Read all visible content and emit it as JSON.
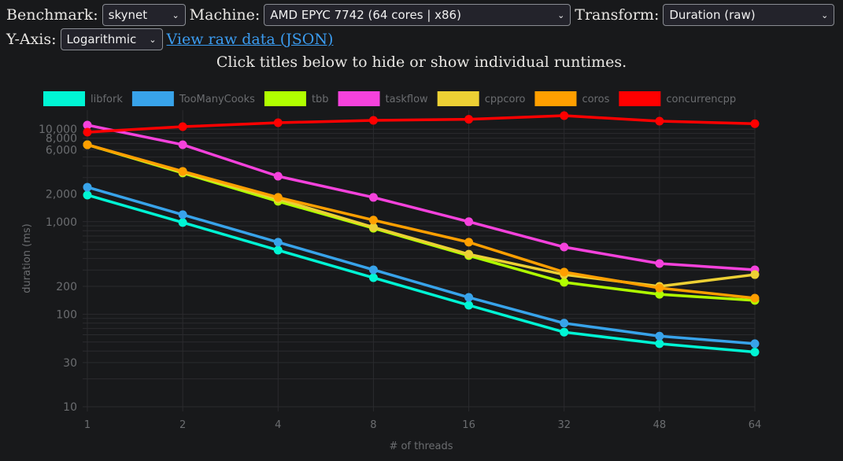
{
  "controls": {
    "benchmark_label": "Benchmark:",
    "benchmark_value": "skynet",
    "machine_label": "Machine:",
    "machine_value": "AMD EPYC 7742 (64 cores | x86)",
    "transform_label": "Transform:",
    "transform_value": "Duration (raw)",
    "yaxis_label": "Y-Axis:",
    "yaxis_value": "Logarithmic",
    "raw_link": "View raw data (JSON)"
  },
  "hint": "Click titles below to hide or show individual runtimes.",
  "colors": {
    "background": "#18191b",
    "grid": "#2a2b2e",
    "tick_text": "#6b6d70"
  },
  "chart_data": {
    "type": "line",
    "xlabel": "# of threads",
    "ylabel": "duration (ms)",
    "y_scale": "log",
    "ylim": [
      10,
      14300
    ],
    "grid": true,
    "legend_placement": "top",
    "categories": [
      "1",
      "2",
      "4",
      "8",
      "16",
      "32",
      "48",
      "64"
    ],
    "y_ticks": [
      {
        "value": 10,
        "label": "10"
      },
      {
        "value": 30,
        "label": "30"
      },
      {
        "value": 100,
        "label": "100"
      },
      {
        "value": 200,
        "label": "200"
      },
      {
        "value": 1000,
        "label": "1,000"
      },
      {
        "value": 2000,
        "label": "2,000"
      },
      {
        "value": 6000,
        "label": "6,000"
      },
      {
        "value": 8000,
        "label": "8,000"
      },
      {
        "value": 10000,
        "label": "10,000"
      }
    ],
    "series": [
      {
        "name": "libfork",
        "color": "#00f5d4",
        "values": [
          1940,
          980,
          492,
          248,
          125,
          64,
          48,
          39
        ]
      },
      {
        "name": "TooManyCooks",
        "color": "#38a3ea",
        "values": [
          2360,
          1190,
          600,
          302,
          152,
          80,
          58,
          48
        ]
      },
      {
        "name": "tbb",
        "color": "#b0ff00",
        "values": [
          6790,
          3360,
          1660,
          850,
          430,
          221,
          164,
          141
        ]
      },
      {
        "name": "taskflow",
        "color": "#f542dc",
        "values": [
          11070,
          6790,
          3100,
          1830,
          1000,
          532,
          353,
          302
        ]
      },
      {
        "name": "cppcoro",
        "color": "#ecd034",
        "values": [
          6790,
          3430,
          1760,
          870,
          445,
          268,
          200,
          268
        ]
      },
      {
        "name": "coros",
        "color": "#ff9f00",
        "values": [
          6790,
          3500,
          1830,
          1040,
          600,
          285,
          192,
          149
        ]
      },
      {
        "name": "concurrencpp",
        "color": "#ff0000",
        "values": [
          9290,
          10640,
          11740,
          12450,
          12800,
          14000,
          12200,
          11460
        ]
      }
    ]
  }
}
